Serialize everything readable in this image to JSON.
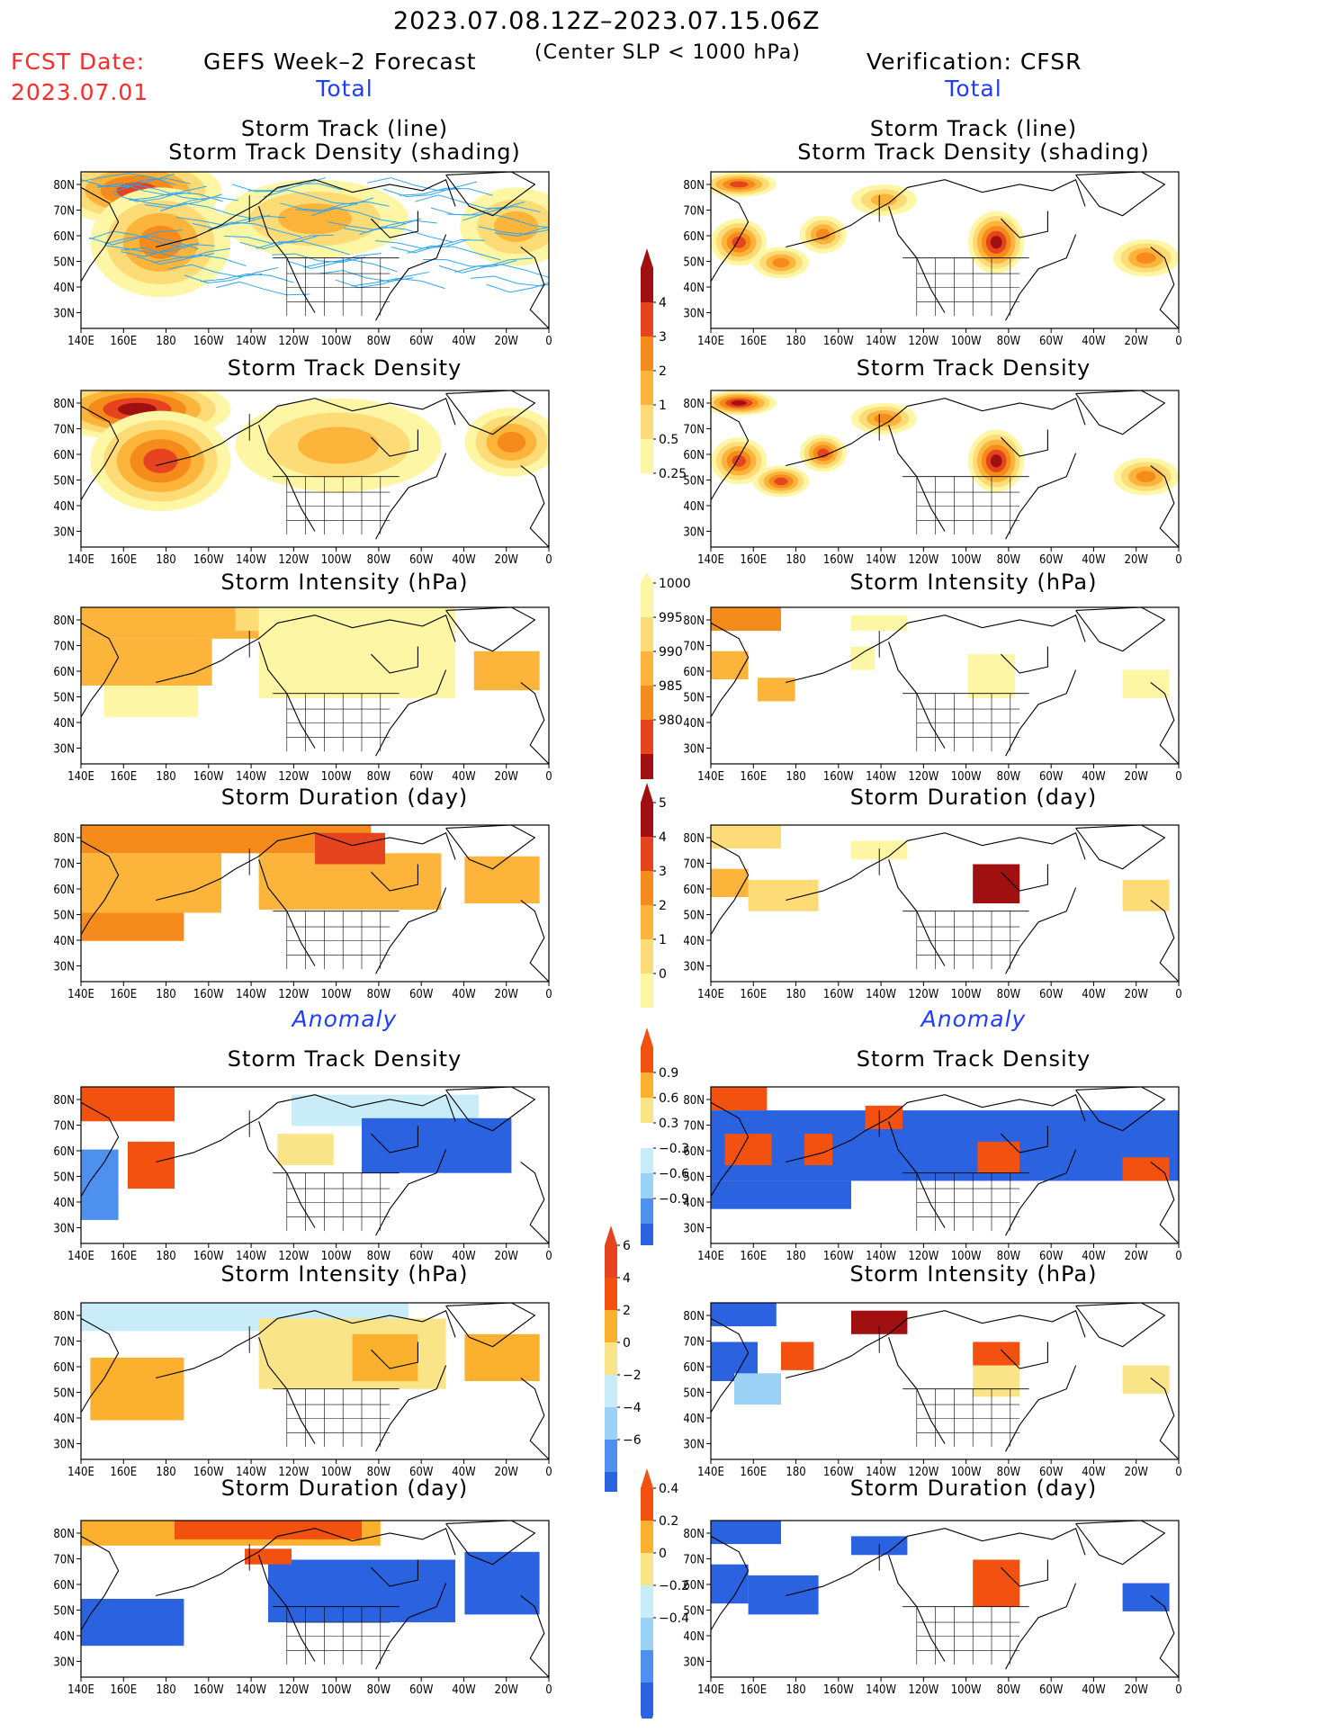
{
  "header": {
    "date_range": "2023.07.08.12Z–2023.07.15.06Z",
    "fcst_date_label": "FCST Date:",
    "fcst_date_value": "2023.07.01",
    "forecast_title": "GEFS Week–2 Forecast",
    "condition": "(Center SLP < 1000 hPa)",
    "verification_title": "Verification: CFSR"
  },
  "sections": {
    "left_total": "Total",
    "right_total": "Total",
    "left_anomaly": "Anomaly",
    "right_anomaly": "Anomaly"
  },
  "panel_titles": {
    "track_line": "Storm Track (line)",
    "track_shading": "Storm Track Density (shading)",
    "density": "Storm Track Density",
    "intensity": "Storm Intensity (hPa)",
    "duration": "Storm Duration (day)"
  },
  "axes": {
    "x_ticks": [
      "140E",
      "160E",
      "180",
      "160W",
      "140W",
      "120W",
      "100W",
      "80W",
      "60W",
      "40W",
      "20W",
      "0"
    ],
    "y_ticks": [
      "80N",
      "70N",
      "60N",
      "50N",
      "40N",
      "30N"
    ]
  },
  "colors": {
    "seq": [
      "#fdf6a4",
      "#fddc78",
      "#fcb43a",
      "#f58b1b",
      "#e6441e",
      "#a01010"
    ],
    "div_neg": [
      "#2a62e0",
      "#4d90ee",
      "#9ad1f4",
      "#c9ecf9"
    ],
    "div_pos": [
      "#fae488",
      "#fbb12e",
      "#f2510f"
    ],
    "track_lines": "#30a6ee",
    "header_red": "#ff2a2a",
    "section_blue": "#1f3dff"
  },
  "colorbars": {
    "density": [
      "4",
      "3",
      "2",
      "1",
      "0.5",
      "0.25"
    ],
    "intensity": [
      "1000",
      "995",
      "990",
      "985",
      "980"
    ],
    "duration": [
      "5",
      "4",
      "3",
      "2",
      "1",
      "0"
    ],
    "anom_density": [
      "0.9",
      "0.6",
      "0.3",
      "−0.3",
      "−0.6",
      "−0.9"
    ],
    "anom_intensity": [
      "6",
      "4",
      "2",
      "0",
      "−2",
      "−4",
      "−6"
    ],
    "anom_duration": [
      "0.4",
      "0.2",
      "0",
      "−0.2",
      "−0.4"
    ]
  }
}
